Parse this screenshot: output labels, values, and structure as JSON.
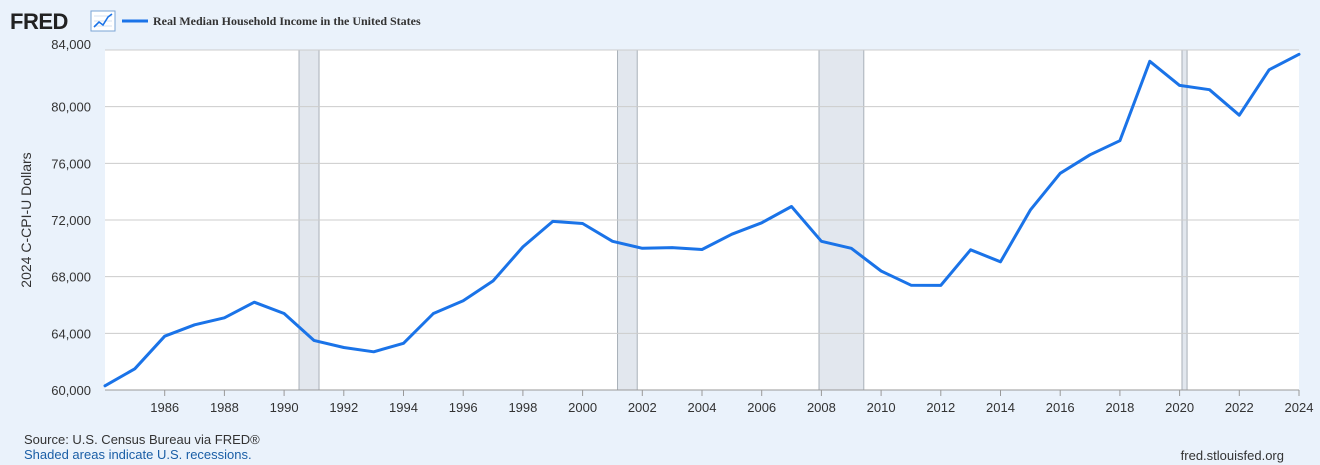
{
  "brand": {
    "logo_text": "FRED",
    "logo_icon": "line-chart-icon"
  },
  "legend": {
    "label": "Real Median Household Income in the United States"
  },
  "footer": {
    "source": "Source: U.S. Census Bureau via FRED®",
    "note": "Shaded areas indicate U.S. recessions.",
    "site": "fred.stlouisfed.org"
  },
  "colors": {
    "line": "#1a73e8",
    "recession": "#e2e7ee",
    "background": "#eaf2fb",
    "plot": "#ffffff",
    "grid": "#cccccc"
  },
  "chart_data": {
    "type": "line",
    "title": "Real Median Household Income in the United States",
    "xlabel": "",
    "ylabel": "2024 C-CPI-U Dollars",
    "xlim": [
      1984,
      2024
    ],
    "ylim": [
      60000,
      84000
    ],
    "x_ticks": [
      1986,
      1988,
      1990,
      1992,
      1994,
      1996,
      1998,
      2000,
      2002,
      2004,
      2006,
      2008,
      2010,
      2012,
      2014,
      2016,
      2018,
      2020,
      2022,
      2024
    ],
    "x_tick_labels": [
      "1986",
      "1988",
      "1990",
      "1992",
      "1994",
      "1996",
      "1998",
      "2000",
      "2002",
      "2004",
      "2006",
      "2008",
      "2010",
      "2012",
      "2014",
      "2016",
      "2018",
      "2020",
      "2022",
      "2024"
    ],
    "y_ticks": [
      60000,
      64000,
      68000,
      72000,
      76000,
      80000,
      84000
    ],
    "y_tick_labels": [
      "60,000",
      "64,000",
      "68,000",
      "72,000",
      "76,000",
      "80,000",
      "84,000"
    ],
    "grid": true,
    "recessions": [
      {
        "start": 1990.5,
        "end": 1991.17
      },
      {
        "start": 2001.17,
        "end": 2001.83
      },
      {
        "start": 2007.92,
        "end": 2009.42
      },
      {
        "start": 2020.08,
        "end": 2020.25
      }
    ],
    "series": [
      {
        "name": "Real Median Household Income in the United States",
        "x": [
          1984,
          1985,
          1986,
          1987,
          1988,
          1989,
          1990,
          1991,
          1992,
          1993,
          1994,
          1995,
          1996,
          1997,
          1998,
          1999,
          2000,
          2001,
          2002,
          2003,
          2004,
          2005,
          2006,
          2007,
          2008,
          2009,
          2010,
          2011,
          2012,
          2013,
          2014,
          2015,
          2016,
          2017,
          2018,
          2019,
          2020,
          2021,
          2022,
          2023,
          2024
        ],
        "values": [
          60300,
          61500,
          63800,
          64600,
          65100,
          66200,
          65400,
          63500,
          63000,
          62700,
          63300,
          65400,
          66300,
          67700,
          70100,
          71900,
          71750,
          70500,
          70000,
          70050,
          69920,
          71000,
          71800,
          72950,
          70500,
          70000,
          68400,
          67400,
          67380,
          69900,
          69050,
          72700,
          75300,
          76600,
          77600,
          83200,
          81500,
          81200,
          79400,
          82600,
          83700
        ]
      }
    ]
  }
}
